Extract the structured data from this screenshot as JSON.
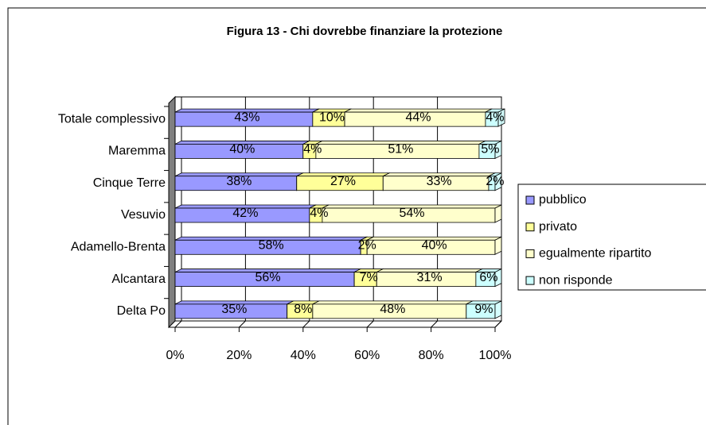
{
  "chart_data": {
    "type": "bar",
    "orientation": "horizontal",
    "stacked": true,
    "title": "Figura 13 - Chi dovrebbe finanziare la protezione",
    "categories": [
      "Totale complessivo",
      "Maremma",
      "Cinque Terre",
      "Vesuvio",
      "Adamello-Brenta",
      "Alcantara",
      "Delta Po"
    ],
    "series": [
      {
        "name": "pubblico",
        "color": "#9999ff",
        "values": [
          43,
          40,
          38,
          42,
          58,
          56,
          35
        ],
        "value_labels": [
          "43%",
          "40%",
          "38%",
          "42%",
          "58%",
          "56%",
          "35%"
        ]
      },
      {
        "name": "privato",
        "color": "#ffff99",
        "values": [
          10,
          4,
          27,
          4,
          2,
          7,
          8
        ],
        "value_labels": [
          "10%",
          "4%",
          "27%",
          "4%",
          "2%",
          "7%",
          "8%"
        ]
      },
      {
        "name": "egualmente ripartito",
        "color": "#ffffcc",
        "values": [
          44,
          51,
          33,
          54,
          40,
          31,
          48
        ],
        "value_labels": [
          "44%",
          "51%",
          "33%",
          "54%",
          "40%",
          "31%",
          "48%"
        ]
      },
      {
        "name": "non risponde",
        "color": "#ccffff",
        "values": [
          4,
          5,
          2,
          null,
          null,
          6,
          9
        ],
        "value_labels": [
          "4%",
          "5%",
          "2%",
          null,
          null,
          "6%",
          "9%"
        ]
      }
    ],
    "xlim": [
      0,
      100
    ],
    "xticks": [
      {
        "value": 0,
        "label": "0%"
      },
      {
        "value": 20,
        "label": "20%"
      },
      {
        "value": 40,
        "label": "40%"
      },
      {
        "value": 60,
        "label": "60%"
      },
      {
        "value": 80,
        "label": "80%"
      },
      {
        "value": 100,
        "label": "100%"
      }
    ],
    "grid": true,
    "legend": "right"
  }
}
